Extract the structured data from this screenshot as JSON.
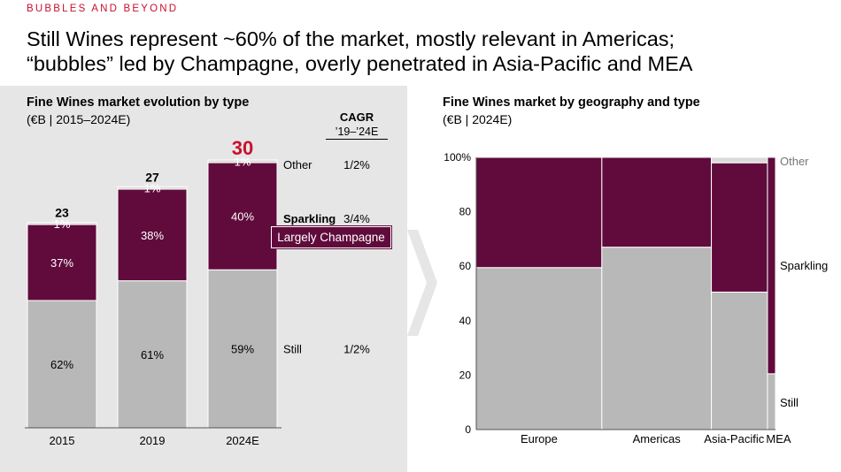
{
  "kicker": "BUBBLES AND BEYOND",
  "headline": {
    "line1": "Still Wines represent ~60% of the market, mostly relevant in Americas;",
    "line2": "“bubbles” led by Champagne, overly penetrated in Asia-Pacific and MEA"
  },
  "colors": {
    "still": "#b8b8b8",
    "sparkling": "#600b3c",
    "other": "#d9d9d9",
    "accent": "#c8102e",
    "panel": "#e6e6e6"
  },
  "chart_data": [
    {
      "type": "bar",
      "title": "Fine Wines market evolution by type",
      "subtitle": "(€B | 2015–2024E)",
      "categories": [
        "2015",
        "2019",
        "2024E"
      ],
      "totals": [
        23,
        27,
        30
      ],
      "total_labels": [
        "23",
        "27",
        "30"
      ],
      "series": [
        {
          "name": "Still",
          "values": [
            62,
            61,
            59
          ],
          "labels": [
            "62%",
            "61%",
            "59%"
          ],
          "cagr": "1/2%"
        },
        {
          "name": "Sparkling",
          "values": [
            37,
            38,
            40
          ],
          "labels": [
            "37%",
            "38%",
            "40%"
          ],
          "cagr": "3/4%"
        },
        {
          "name": "Other",
          "values": [
            1,
            1,
            1
          ],
          "labels": [
            "1%",
            "1%",
            "1%"
          ],
          "cagr": "1/2%"
        }
      ],
      "cagr_header": "CAGR",
      "cagr_period": "’19–’24E",
      "callout": "Largely Champagne"
    },
    {
      "type": "bar",
      "title": "Fine Wines market by geography and type",
      "subtitle": "(€B | 2024E)",
      "categories": [
        "Europe",
        "Americas",
        "Asia-Pacific",
        "MEA"
      ],
      "column_widths": [
        47,
        41,
        21,
        3
      ],
      "series": [
        {
          "name": "Still",
          "values": [
            59.5,
            67,
            50.5,
            20.5
          ]
        },
        {
          "name": "Sparkling",
          "values": [
            40.5,
            33,
            47.5,
            79.5
          ]
        },
        {
          "name": "Other",
          "values": [
            0,
            0,
            2,
            0
          ]
        }
      ],
      "ylim": [
        0,
        100
      ],
      "yticks": [
        "0",
        "20",
        "40",
        "60",
        "80",
        "100%"
      ]
    }
  ]
}
